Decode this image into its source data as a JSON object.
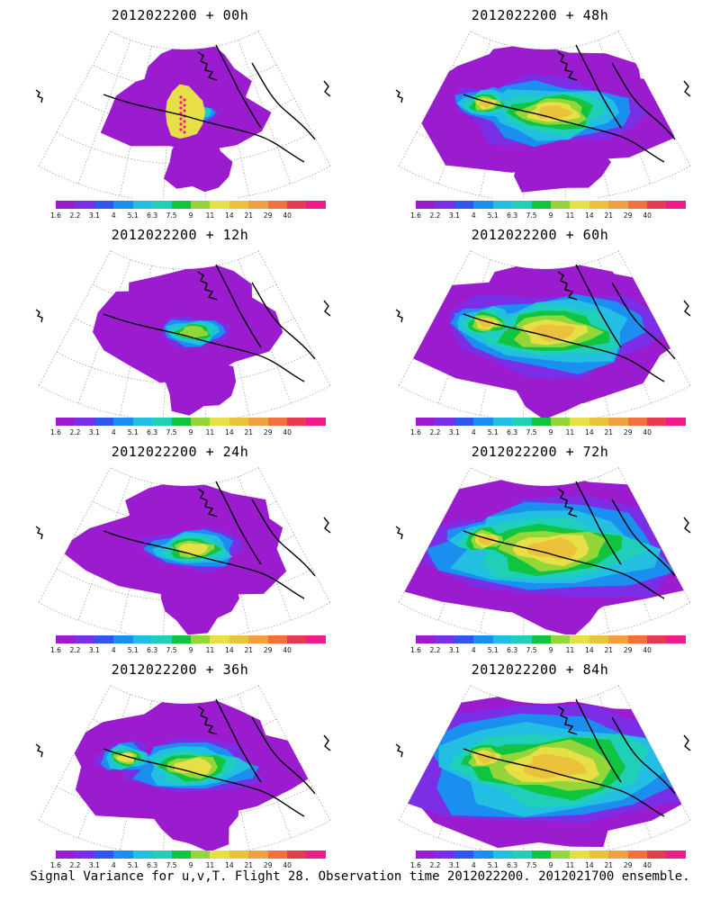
{
  "panels": [
    {
      "title": "2012022200 + 00h"
    },
    {
      "title": "2012022200 + 48h"
    },
    {
      "title": "2012022200 + 12h"
    },
    {
      "title": "2012022200 + 60h"
    },
    {
      "title": "2012022200 + 24h"
    },
    {
      "title": "2012022200 + 72h"
    },
    {
      "title": "2012022200 + 36h"
    },
    {
      "title": "2012022200 + 84h"
    }
  ],
  "colorbar": {
    "ticks": [
      "1.6",
      "2.2",
      "3.1",
      "4",
      "5.1",
      "6.3",
      "7.5",
      "9",
      "11",
      "14",
      "21",
      "29",
      "40"
    ],
    "colors": [
      "#9b1ccf",
      "#7a2fe6",
      "#2f56ef",
      "#1b8ff0",
      "#22bfe3",
      "#1fcfb8",
      "#10c43f",
      "#92d63a",
      "#e6df45",
      "#ebc23b",
      "#eea243",
      "#f0713f",
      "#e83a4e",
      "#f01a8a"
    ]
  },
  "caption": "Signal Variance for u,v,T. Flight 28. Observation time 2012022200. 2012021700 ensemble."
}
